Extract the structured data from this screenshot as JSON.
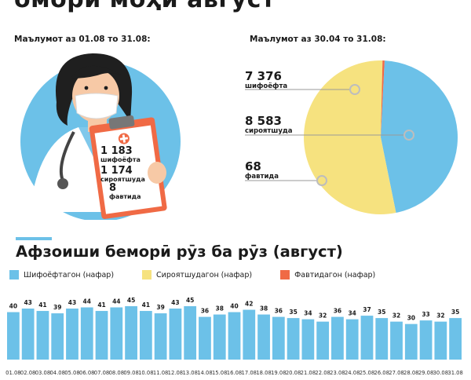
{
  "header": {
    "title": "омори моҳи август"
  },
  "left": {
    "period": "Маълумот аз 01.08 то 31.08:",
    "stats": [
      {
        "value": "1 183",
        "label": "шифоёфта"
      },
      {
        "value": "1 174",
        "label": "сироятшуда"
      },
      {
        "value": "8",
        "label": "фавтида"
      }
    ]
  },
  "right": {
    "period": "Маълумот аз 30.04 то 31.08:",
    "stats": [
      {
        "value": "7 376",
        "label": "шифоёфта"
      },
      {
        "value": "8 583",
        "label": "сироятшуда"
      },
      {
        "value": "68",
        "label": "фавтида"
      }
    ]
  },
  "colors": {
    "blue": "#6cc1e8",
    "yellow": "#f6e27f",
    "orange": "#f06a45",
    "skin": "#f7c9a6",
    "hair": "#1f1f1f"
  },
  "chart_data": [
    {
      "type": "pie",
      "labels": [
        "шифоёфта",
        "сироятшуда",
        "фавтида"
      ],
      "values": [
        7376,
        8583,
        68
      ],
      "colors": [
        "#6cc1e8",
        "#f6e27f",
        "#f06a45"
      ]
    },
    {
      "type": "bar",
      "title": "Афзоиши беморӣ рӯз ба рӯз (август)",
      "legend": [
        "Шифоёфтагон (нафар)",
        "Сироятшудагон (нафар)",
        "Фавтидагон (нафар)"
      ],
      "legend_colors": [
        "#6cc1e8",
        "#f6e27f",
        "#f06a45"
      ],
      "categories": [
        "01.08",
        "02.08",
        "03.08",
        "04.08",
        "05.08",
        "06.08",
        "07.08",
        "08.08",
        "09.08",
        "10.08",
        "11.08",
        "12.08",
        "13.08",
        "14.08",
        "15.08",
        "16.08",
        "17.08",
        "18.08",
        "19.08",
        "20.08",
        "21.08",
        "22.08",
        "23.08",
        "24.08",
        "25.08",
        "26.08",
        "27.08",
        "28.08",
        "29.08",
        "30.08",
        "31.08"
      ],
      "series": [
        {
          "name": "Шифоёфтагон (нафар)",
          "values": [
            40,
            43,
            41,
            39,
            43,
            44,
            41,
            44,
            45,
            41,
            39,
            43,
            45,
            36,
            38,
            40,
            42,
            38,
            36,
            35,
            34,
            32,
            36,
            34,
            37,
            35,
            32,
            30,
            33,
            32,
            35
          ]
        }
      ],
      "ylim": [
        0,
        45
      ]
    }
  ]
}
